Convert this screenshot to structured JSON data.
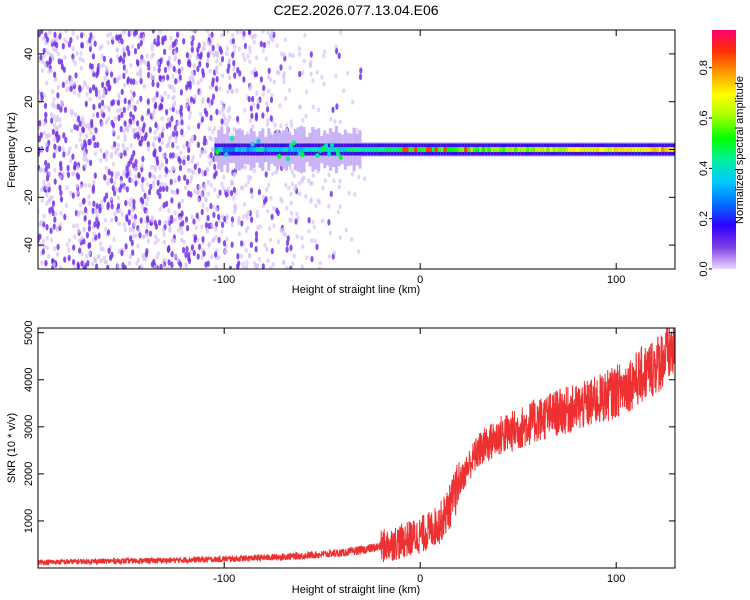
{
  "title": "C2E2.2026.077.13.04.E06",
  "chart_data": [
    {
      "type": "heatmap",
      "name": "spectrogram",
      "xlabel": "Height of straight line (km)",
      "ylabel": "Frequency (Hz)",
      "xlim": [
        -195,
        130
      ],
      "ylim": [
        -50,
        50
      ],
      "xticks": [
        -100,
        0,
        100
      ],
      "yticks": [
        -40,
        -20,
        0,
        20,
        40
      ],
      "colorbar": {
        "label": "Normalized spectral amplitude",
        "range": [
          0.0,
          0.95
        ],
        "ticks": [
          0.0,
          0.2,
          0.4,
          0.6,
          0.8
        ],
        "colormap": [
          "#e8d8ff",
          "#7d3fe0",
          "#3000ff",
          "#0070ff",
          "#00c8ff",
          "#00f0a0",
          "#00ff00",
          "#a0ff00",
          "#ffff00",
          "#ffa000",
          "#ff3000",
          "#ff0070"
        ]
      },
      "description_series": [
        {
          "name": "noise floor",
          "x_range": [
            -195,
            -40
          ],
          "freq_range": [
            -50,
            50
          ],
          "amplitude": 0.05
        },
        {
          "name": "carrier band",
          "x_range": [
            -105,
            130
          ],
          "center_freq": 0,
          "amplitude_start": 0.3,
          "amplitude_end": 0.75
        }
      ]
    },
    {
      "type": "line",
      "name": "snr",
      "xlabel": "Height of straight line (km)",
      "ylabel": "SNR (10 * v/v)",
      "xlim": [
        -195,
        130
      ],
      "ylim": [
        0,
        5100
      ],
      "xticks": [
        -100,
        0,
        100
      ],
      "yticks": [
        1000,
        2000,
        3000,
        4000,
        5000
      ],
      "color": "#ee3030",
      "series": [
        {
          "name": "SNR",
          "x": [
            -195,
            -170,
            -150,
            -130,
            -110,
            -100,
            -80,
            -60,
            -40,
            -30,
            -20,
            -10,
            0,
            5,
            10,
            15,
            20,
            25,
            30,
            40,
            50,
            60,
            70,
            80,
            90,
            100,
            110,
            120,
            130
          ],
          "y": [
            120,
            140,
            150,
            160,
            180,
            190,
            220,
            260,
            320,
            380,
            460,
            560,
            700,
            800,
            950,
            1300,
            1800,
            2200,
            2500,
            2800,
            2950,
            3150,
            3300,
            3400,
            3550,
            3750,
            4000,
            4300,
            4700
          ]
        }
      ]
    }
  ]
}
